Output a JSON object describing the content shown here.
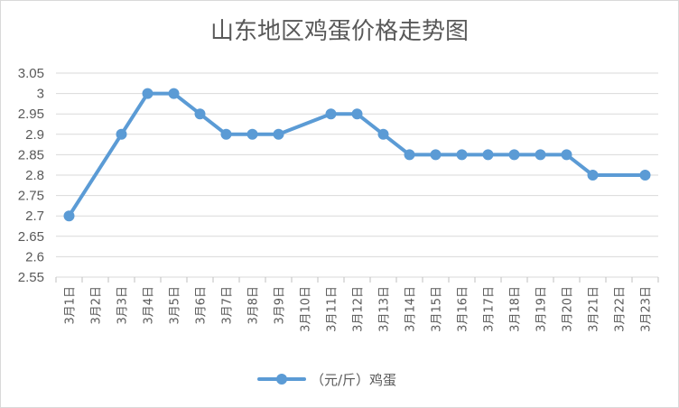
{
  "chart_data": {
    "type": "line",
    "title": "山东地区鸡蛋价格走势图",
    "categories": [
      "3月1日",
      "3月2日",
      "3月3日",
      "3月4日",
      "3月5日",
      "3月6日",
      "3月7日",
      "3月8日",
      "3月9日",
      "3月10日",
      "3月11日",
      "3月12日",
      "3月13日",
      "3月14日",
      "3月15日",
      "3月16日",
      "3月17日",
      "3月18日",
      "3月19日",
      "3月20日",
      "3月21日",
      "3月22日",
      "3月23日"
    ],
    "series": [
      {
        "name": "（元/斤）鸡蛋",
        "values": [
          2.7,
          null,
          2.9,
          3.0,
          3.0,
          2.95,
          2.9,
          2.9,
          2.9,
          null,
          2.95,
          2.95,
          2.9,
          2.85,
          2.85,
          2.85,
          2.85,
          2.85,
          2.85,
          2.85,
          2.8,
          null,
          2.8
        ],
        "color": "#5b9bd5"
      }
    ],
    "yticks": [
      "2.55",
      "2.6",
      "2.65",
      "2.7",
      "2.75",
      "2.8",
      "2.85",
      "2.9",
      "2.95",
      "3",
      "3.05"
    ],
    "ylim": [
      2.55,
      3.05
    ],
    "grid": true,
    "legend": "bottom",
    "xlabel": "",
    "ylabel": ""
  }
}
